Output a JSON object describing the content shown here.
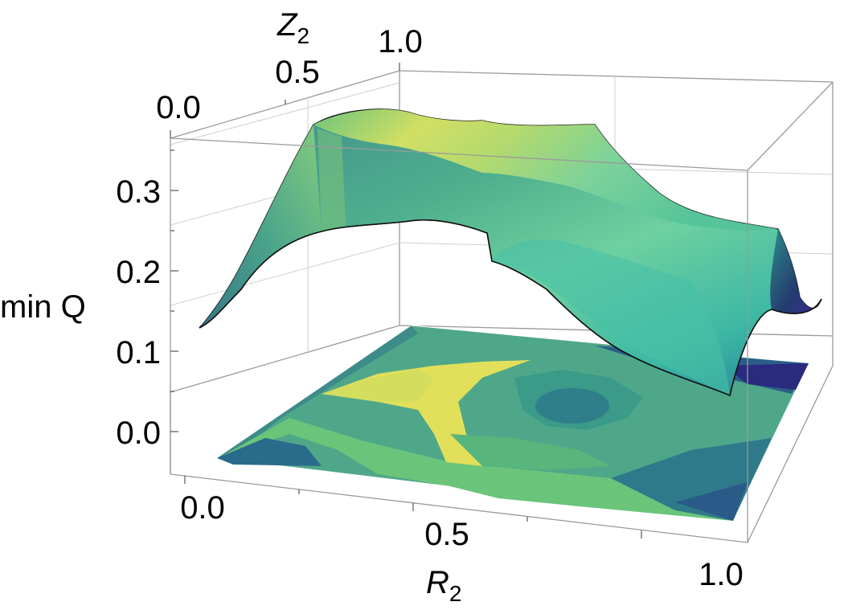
{
  "chart_data": {
    "type": "surface3d",
    "title": "",
    "zlabel": "min Q",
    "xlabel_main": "R",
    "xlabel_sub": "2",
    "ylabel_main": "Z",
    "ylabel_sub": "2",
    "x_ticks": [
      "0.0",
      "0.5",
      "1.0"
    ],
    "y_ticks": [
      "0.0",
      "0.5",
      "1.0"
    ],
    "z_ticks": [
      "0.0",
      "0.1",
      "0.2",
      "0.3"
    ],
    "x_range": [
      0,
      1
    ],
    "y_range": [
      0,
      1
    ],
    "z_range": [
      -0.05,
      0.35
    ],
    "colormap": [
      "#2b1e7a",
      "#2a6a8e",
      "#2e9a8a",
      "#5cc07a",
      "#a8d86a",
      "#e6e35a"
    ],
    "contour_projection": true,
    "surface_profile": {
      "front_edge_R2_from_0_to_1": [
        {
          "r": 0.0,
          "q": 0.12
        },
        {
          "r": 0.2,
          "q": 0.24
        },
        {
          "r": 0.35,
          "q": 0.26
        },
        {
          "r": 0.5,
          "q": 0.24
        },
        {
          "r": 0.6,
          "q": 0.22
        },
        {
          "r": 0.75,
          "q": 0.16
        },
        {
          "r": 0.88,
          "q": 0.06
        },
        {
          "r": 1.0,
          "q": 0.05
        }
      ],
      "back_edge_R2_from_0_to_1": [
        {
          "r": 0.0,
          "q": 0.35
        },
        {
          "r": 0.2,
          "q": 0.37
        },
        {
          "r": 0.4,
          "q": 0.35
        },
        {
          "r": 0.6,
          "q": 0.25
        },
        {
          "r": 0.8,
          "q": 0.22
        },
        {
          "r": 1.0,
          "q": 0.12
        }
      ]
    }
  }
}
